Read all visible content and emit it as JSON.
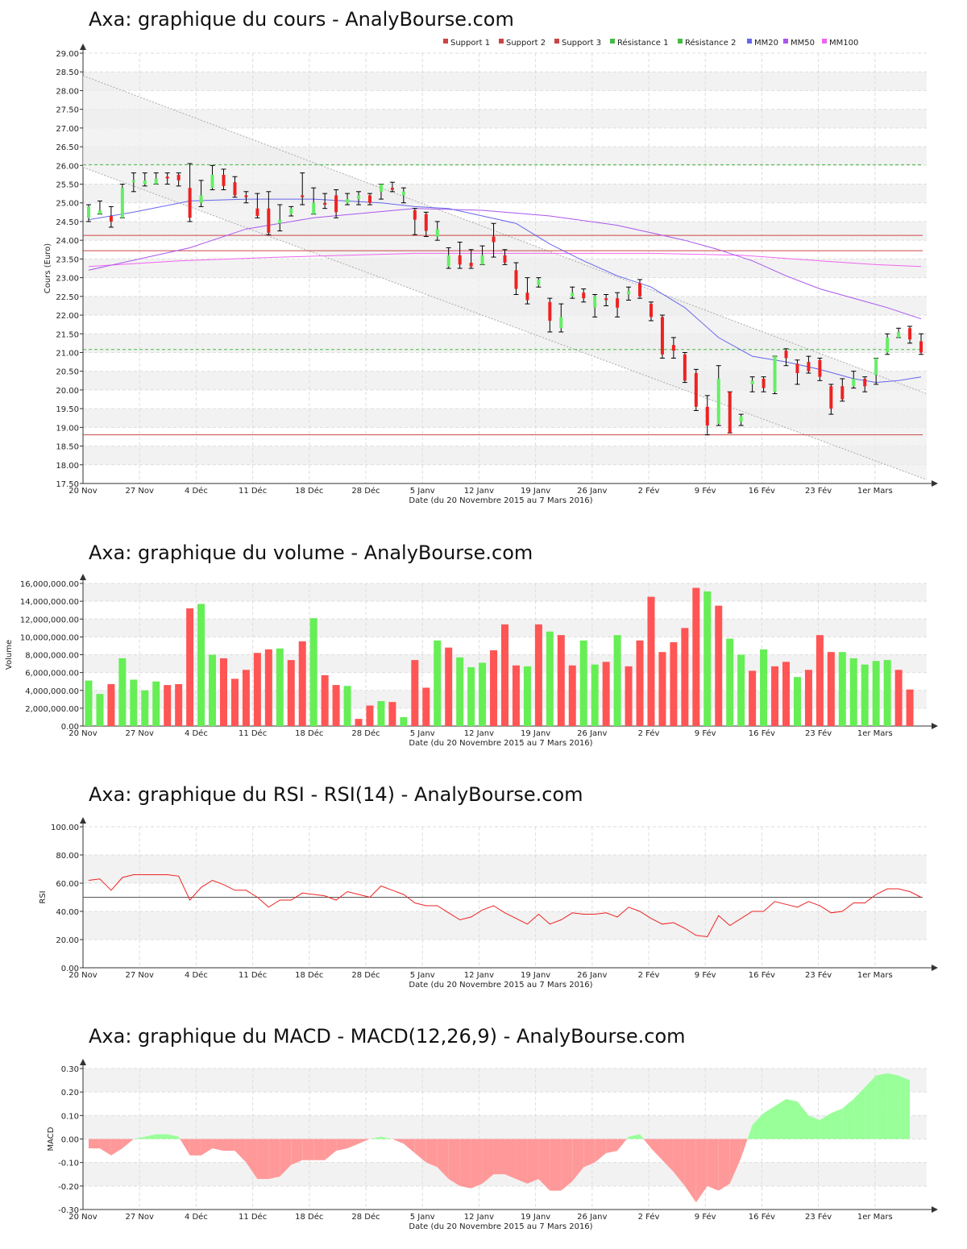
{
  "x_axis": {
    "tick_labels": [
      "20 Nov",
      "27 Nov",
      "4 Déc",
      "11 Déc",
      "18 Déc",
      "28 Déc",
      "5 Janv",
      "12 Janv",
      "19 Janv",
      "26 Janv",
      "2 Fév",
      "9 Fév",
      "16 Fév",
      "23 Fév",
      "1er Mars"
    ],
    "caption": "Date (du 20 Novembre 2015 au 7 Mars 2016)"
  },
  "colors": {
    "up": "#66ee66",
    "down": "#ee2222",
    "vol_up": "#66ee55",
    "vol_down": "#ff5555",
    "mm20": "#6666ee",
    "mm50": "#aa55ee",
    "mm100": "#ee66ee",
    "support": "#cc4444",
    "resistance": "#44bb44",
    "rsi": "#ee2222",
    "macd_pos": "#99ff99",
    "macd_neg": "#ff9999"
  },
  "chart_data": [
    {
      "type": "candlestick",
      "title": "Axa: graphique du cours - AnalyBourse.com",
      "xlabel": "Date (du 20 Novembre 2015 au 7 Mars 2016)",
      "ylabel": "Cours (Euro)",
      "ylim": [
        17.5,
        29.0
      ],
      "yticks": [
        "17.50",
        "18.00",
        "18.50",
        "19.00",
        "19.50",
        "20.00",
        "20.50",
        "21.00",
        "21.50",
        "22.00",
        "22.50",
        "23.00",
        "23.50",
        "24.00",
        "24.50",
        "25.00",
        "25.50",
        "26.00",
        "26.50",
        "27.00",
        "27.50",
        "28.00",
        "28.50",
        "29.00"
      ],
      "legend": [
        "Support 1",
        "Support 2",
        "Support 3",
        "Résistance 1",
        "Résistance 2",
        "MM20",
        "MM50",
        "MM100"
      ],
      "levels": {
        "support_1": 18.8,
        "support_2": 23.72,
        "support_3": 24.13,
        "resistance_1": 21.08,
        "resistance_2": 26.02
      },
      "trend_channel": {
        "upper": [
          28.4,
          19.9
        ],
        "lower": [
          25.95,
          17.6
        ]
      },
      "candles": [
        [
          24.6,
          24.9,
          24.5,
          24.95
        ],
        [
          24.7,
          24.8,
          24.7,
          25.05
        ],
        [
          24.65,
          24.5,
          24.35,
          24.9
        ],
        [
          24.6,
          25.4,
          24.6,
          25.5
        ],
        [
          25.55,
          25.6,
          25.3,
          25.8
        ],
        [
          25.5,
          25.6,
          25.45,
          25.8
        ],
        [
          25.5,
          25.65,
          25.5,
          25.8
        ],
        [
          25.7,
          25.65,
          25.5,
          25.8
        ],
        [
          25.75,
          25.6,
          25.45,
          25.8
        ],
        [
          25.4,
          24.6,
          24.5,
          26.05
        ],
        [
          25.0,
          25.2,
          24.9,
          25.6
        ],
        [
          25.4,
          25.75,
          25.35,
          26.0
        ],
        [
          25.75,
          25.45,
          25.35,
          25.9
        ],
        [
          25.55,
          25.2,
          25.15,
          25.7
        ],
        [
          25.2,
          25.15,
          25.0,
          25.3
        ],
        [
          24.85,
          24.65,
          24.6,
          25.25
        ],
        [
          24.85,
          24.2,
          24.15,
          25.3
        ],
        [
          24.45,
          24.55,
          24.25,
          24.95
        ],
        [
          24.7,
          24.85,
          24.65,
          24.9
        ],
        [
          25.2,
          25.15,
          24.95,
          25.8
        ],
        [
          24.7,
          25.0,
          24.7,
          25.4
        ],
        [
          25.0,
          24.95,
          24.85,
          25.25
        ],
        [
          25.2,
          24.75,
          24.6,
          25.35
        ],
        [
          25.0,
          25.1,
          24.95,
          25.25
        ],
        [
          25.1,
          25.2,
          24.95,
          25.3
        ],
        [
          25.2,
          25.0,
          24.95,
          25.25
        ],
        [
          25.3,
          25.5,
          25.1,
          25.5
        ],
        [
          25.4,
          25.35,
          25.3,
          25.55
        ],
        [
          25.2,
          25.3,
          25.0,
          25.4
        ],
        [
          24.8,
          24.55,
          24.15,
          24.85
        ],
        [
          24.7,
          24.25,
          24.1,
          24.75
        ],
        [
          24.1,
          24.3,
          24.0,
          24.5
        ],
        [
          23.3,
          23.6,
          23.25,
          23.8
        ],
        [
          23.6,
          23.35,
          23.25,
          23.95
        ],
        [
          23.4,
          23.3,
          23.25,
          23.75
        ],
        [
          23.35,
          23.6,
          23.35,
          23.85
        ],
        [
          24.1,
          23.95,
          23.55,
          24.45
        ],
        [
          23.6,
          23.4,
          23.35,
          23.75
        ],
        [
          23.2,
          22.7,
          22.55,
          23.4
        ],
        [
          22.6,
          22.4,
          22.3,
          23.0
        ],
        [
          22.8,
          22.95,
          22.75,
          23.0
        ],
        [
          22.35,
          21.85,
          21.55,
          22.45
        ],
        [
          21.65,
          21.95,
          21.55,
          22.3
        ],
        [
          22.5,
          22.6,
          22.45,
          22.75
        ],
        [
          22.6,
          22.45,
          22.35,
          22.7
        ],
        [
          22.2,
          22.5,
          21.95,
          22.55
        ],
        [
          22.45,
          22.4,
          22.25,
          22.55
        ],
        [
          22.45,
          22.2,
          21.95,
          22.6
        ],
        [
          22.55,
          22.65,
          22.4,
          22.75
        ],
        [
          22.85,
          22.5,
          22.45,
          22.95
        ],
        [
          22.3,
          21.95,
          21.85,
          22.35
        ],
        [
          21.95,
          20.95,
          20.85,
          22.0
        ],
        [
          21.2,
          21.05,
          20.85,
          21.4
        ],
        [
          20.95,
          20.25,
          20.2,
          21.0
        ],
        [
          20.45,
          19.55,
          19.45,
          20.55
        ],
        [
          19.55,
          19.05,
          18.8,
          19.85
        ],
        [
          19.1,
          20.3,
          19.05,
          20.65
        ],
        [
          19.95,
          18.85,
          18.85,
          19.95
        ],
        [
          19.15,
          19.3,
          19.05,
          19.35
        ],
        [
          20.15,
          20.25,
          19.95,
          20.35
        ],
        [
          20.3,
          20.05,
          19.95,
          20.35
        ],
        [
          19.95,
          20.9,
          19.9,
          20.9
        ],
        [
          21.05,
          20.85,
          20.65,
          21.1
        ],
        [
          20.7,
          20.45,
          20.15,
          20.8
        ],
        [
          20.75,
          20.5,
          20.45,
          20.9
        ],
        [
          20.8,
          20.35,
          20.25,
          20.85
        ],
        [
          20.1,
          19.5,
          19.35,
          20.15
        ],
        [
          20.1,
          19.75,
          19.7,
          20.3
        ],
        [
          20.1,
          20.3,
          20.05,
          20.5
        ],
        [
          20.3,
          20.1,
          19.95,
          20.35
        ],
        [
          20.4,
          20.85,
          20.15,
          20.85
        ],
        [
          21.0,
          21.4,
          20.95,
          21.5
        ],
        [
          21.4,
          21.55,
          21.4,
          21.65
        ],
        [
          21.65,
          21.35,
          21.25,
          21.7
        ],
        [
          21.3,
          21.0,
          20.95,
          21.5
        ]
      ],
      "mm20": [
        [
          0,
          24.55
        ],
        [
          4,
          24.75
        ],
        [
          9,
          25.05
        ],
        [
          14,
          25.1
        ],
        [
          20,
          25.1
        ],
        [
          26,
          25.0
        ],
        [
          29,
          24.9
        ],
        [
          32,
          24.85
        ],
        [
          35,
          24.65
        ],
        [
          38,
          24.45
        ],
        [
          41,
          23.9
        ],
        [
          44,
          23.45
        ],
        [
          47,
          23.05
        ],
        [
          50,
          22.75
        ],
        [
          53,
          22.2
        ],
        [
          56,
          21.4
        ],
        [
          59,
          20.9
        ],
        [
          62,
          20.75
        ],
        [
          65,
          20.55
        ],
        [
          68,
          20.3
        ],
        [
          70,
          20.2
        ],
        [
          72,
          20.25
        ],
        [
          74,
          20.35
        ]
      ],
      "mm50": [
        [
          0,
          23.2
        ],
        [
          9,
          23.8
        ],
        [
          14,
          24.3
        ],
        [
          20,
          24.6
        ],
        [
          29,
          24.85
        ],
        [
          35,
          24.8
        ],
        [
          41,
          24.65
        ],
        [
          47,
          24.4
        ],
        [
          50,
          24.2
        ],
        [
          53,
          24.0
        ],
        [
          56,
          23.75
        ],
        [
          59,
          23.45
        ],
        [
          62,
          23.05
        ],
        [
          65,
          22.7
        ],
        [
          68,
          22.45
        ],
        [
          71,
          22.2
        ],
        [
          74,
          21.9
        ]
      ],
      "mm100": [
        [
          0,
          23.3
        ],
        [
          8,
          23.45
        ],
        [
          17,
          23.55
        ],
        [
          29,
          23.65
        ],
        [
          41,
          23.65
        ],
        [
          50,
          23.65
        ],
        [
          58,
          23.6
        ],
        [
          65,
          23.45
        ],
        [
          70,
          23.35
        ],
        [
          74,
          23.3
        ]
      ]
    },
    {
      "type": "bar",
      "title": "Axa: graphique du volume - AnalyBourse.com",
      "xlabel": "Date (du 20 Novembre 2015 au 7 Mars 2016)",
      "ylabel": "Volume",
      "ylim": [
        0,
        16000000
      ],
      "yticks": [
        "0.00",
        "2,000,000.00",
        "4,000,000.00",
        "6,000,000.00",
        "8,000,000.00",
        "10,000,000.00",
        "12,000,000.00",
        "14,000,000.00",
        "16,000,000.00"
      ],
      "values": [
        5100000,
        3600000,
        4700000,
        7600000,
        5200000,
        4000000,
        5000000,
        4600000,
        4700000,
        13200000,
        13700000,
        8000000,
        7600000,
        5300000,
        6300000,
        8200000,
        8600000,
        8700000,
        7400000,
        9500000,
        12100000,
        5700000,
        4600000,
        4500000,
        800000,
        2300000,
        2800000,
        2700000,
        1000000,
        7400000,
        4300000,
        9600000,
        8800000,
        7700000,
        6600000,
        7100000,
        8500000,
        11400000,
        6800000,
        6700000,
        11400000,
        10600000,
        10200000,
        6800000,
        9600000,
        6900000,
        7200000,
        10200000,
        6700000,
        9600000,
        14500000,
        8300000,
        9400000,
        11000000,
        15500000,
        15100000,
        13500000,
        9800000,
        8000000,
        6200000,
        8600000,
        6700000,
        7200000,
        5500000,
        6300000,
        10200000,
        8300000,
        8300000,
        7600000,
        6900000,
        7300000,
        7400000,
        6300000,
        4100000
      ],
      "up": [
        1,
        1,
        0,
        1,
        1,
        1,
        1,
        0,
        0,
        0,
        1,
        1,
        0,
        0,
        0,
        0,
        0,
        1,
        0,
        0,
        1,
        0,
        0,
        1,
        0,
        0,
        1,
        0,
        1,
        0,
        0,
        1,
        0,
        1,
        1,
        1,
        0,
        0,
        0,
        1,
        0,
        1,
        0,
        0,
        1,
        1,
        0,
        1,
        0,
        0,
        0,
        0,
        0,
        0,
        0,
        1,
        0,
        1,
        1,
        0,
        1,
        0,
        0,
        1,
        0,
        0,
        0,
        1,
        1,
        1,
        1,
        1,
        0,
        0
      ]
    },
    {
      "type": "line",
      "title": "Axa: graphique du RSI - RSI(14) - AnalyBourse.com",
      "xlabel": "Date (du 20 Novembre 2015 au 7 Mars 2016)",
      "ylabel": "RSI",
      "ylim": [
        0,
        100
      ],
      "yticks": [
        "0.00",
        "20.00",
        "40.00",
        "60.00",
        "80.00",
        "100.00"
      ],
      "reference": 50,
      "values": [
        62,
        63,
        55,
        64,
        66,
        66,
        66,
        66,
        65,
        48,
        57,
        62,
        59,
        55,
        55,
        50,
        43,
        48,
        48,
        53,
        52,
        51,
        48,
        54,
        52,
        50,
        58,
        55,
        52,
        46,
        44,
        44,
        39,
        34,
        36,
        41,
        44,
        39,
        35,
        31,
        38,
        31,
        34,
        39,
        38,
        38,
        39,
        36,
        43,
        40,
        35,
        31,
        32,
        28,
        23,
        22,
        37,
        30,
        35,
        40,
        40,
        47,
        45,
        43,
        47,
        44,
        39,
        40,
        46,
        46,
        52,
        56,
        56,
        54,
        50
      ]
    },
    {
      "type": "area",
      "title": "Axa: graphique du MACD - MACD(12,26,9) - AnalyBourse.com",
      "xlabel": "Date (du 20 Novembre 2015 au 7 Mars 2016)",
      "ylabel": "MACD",
      "ylim": [
        -0.3,
        0.3
      ],
      "yticks": [
        "-0.30",
        "-0.20",
        "-0.10",
        "0.00",
        "0.10",
        "0.20",
        "0.30"
      ],
      "values": [
        -0.04,
        -0.04,
        -0.07,
        -0.04,
        0.0,
        0.01,
        0.02,
        0.02,
        0.01,
        -0.07,
        -0.07,
        -0.04,
        -0.05,
        -0.05,
        -0.1,
        -0.17,
        -0.17,
        -0.16,
        -0.11,
        -0.09,
        -0.09,
        -0.09,
        -0.05,
        -0.04,
        -0.02,
        0.0,
        0.01,
        0.0,
        -0.02,
        -0.06,
        -0.1,
        -0.12,
        -0.17,
        -0.2,
        -0.21,
        -0.19,
        -0.15,
        -0.15,
        -0.17,
        -0.19,
        -0.17,
        -0.22,
        -0.22,
        -0.18,
        -0.12,
        -0.1,
        -0.06,
        -0.05,
        0.01,
        0.02,
        -0.04,
        -0.09,
        -0.14,
        -0.2,
        -0.27,
        -0.2,
        -0.22,
        -0.19,
        -0.08,
        0.06,
        0.11,
        0.14,
        0.17,
        0.16,
        0.1,
        0.08,
        0.11,
        0.13,
        0.17,
        0.22,
        0.27,
        0.28,
        0.27,
        0.25
      ]
    }
  ]
}
